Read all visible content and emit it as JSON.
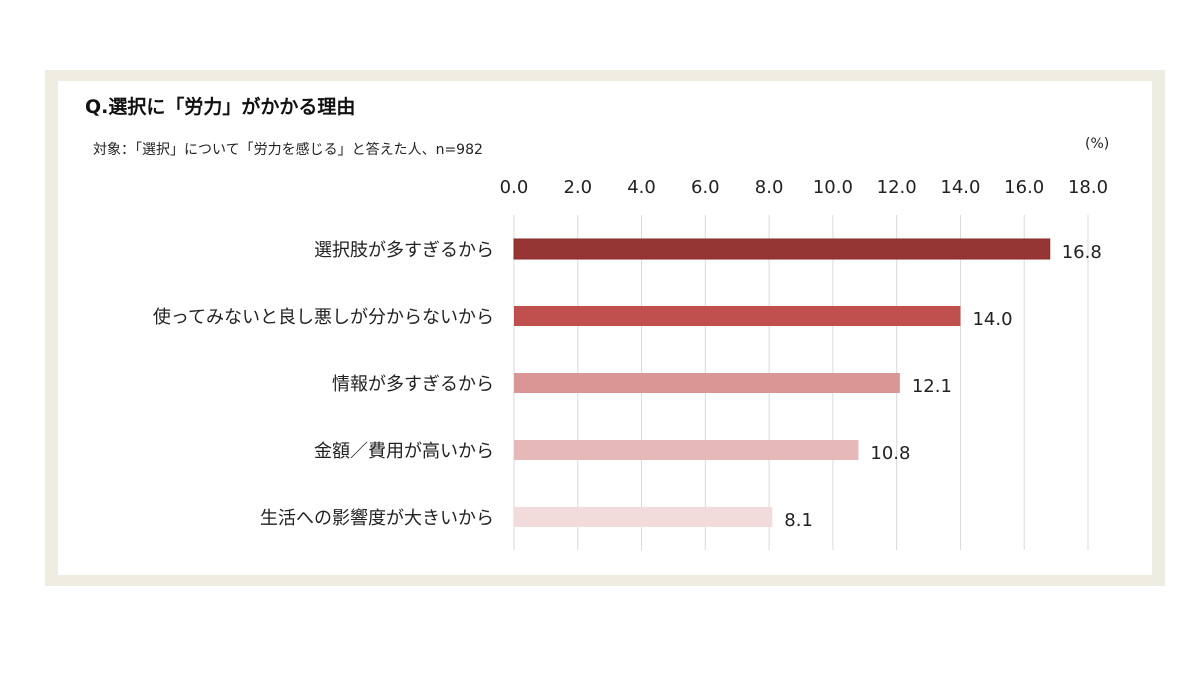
{
  "title": "Q.選択に「労力」がかかる理由",
  "subtitle": "対象：「選択」について「労力を感じる」と答えた人、n=982",
  "unit": "(%)",
  "chart_data": {
    "type": "bar",
    "orientation": "horizontal",
    "categories": [
      "選択肢が多すぎるから",
      "使ってみないと良し悪しが分からないから",
      "情報が多すぎるから",
      "金額／費用が高いから",
      "生活への影響度が大きいから"
    ],
    "values": [
      16.8,
      14.0,
      12.1,
      10.8,
      8.1
    ],
    "value_labels": [
      "16.8",
      "14.0",
      "12.1",
      "10.8",
      "8.1"
    ],
    "colors": [
      "#963634",
      "#c0504d",
      "#da9694",
      "#e6b9b8",
      "#f2dcdb"
    ],
    "xlim": [
      0,
      18
    ],
    "ticks": [
      0,
      2,
      4,
      6,
      8,
      10,
      12,
      14,
      16,
      18
    ],
    "tick_labels": [
      "0.0",
      "2.0",
      "4.0",
      "6.0",
      "8.0",
      "10.0",
      "12.0",
      "14.0",
      "16.0",
      "18.0"
    ],
    "axis_position": "top",
    "grid": true,
    "legend": "none"
  }
}
